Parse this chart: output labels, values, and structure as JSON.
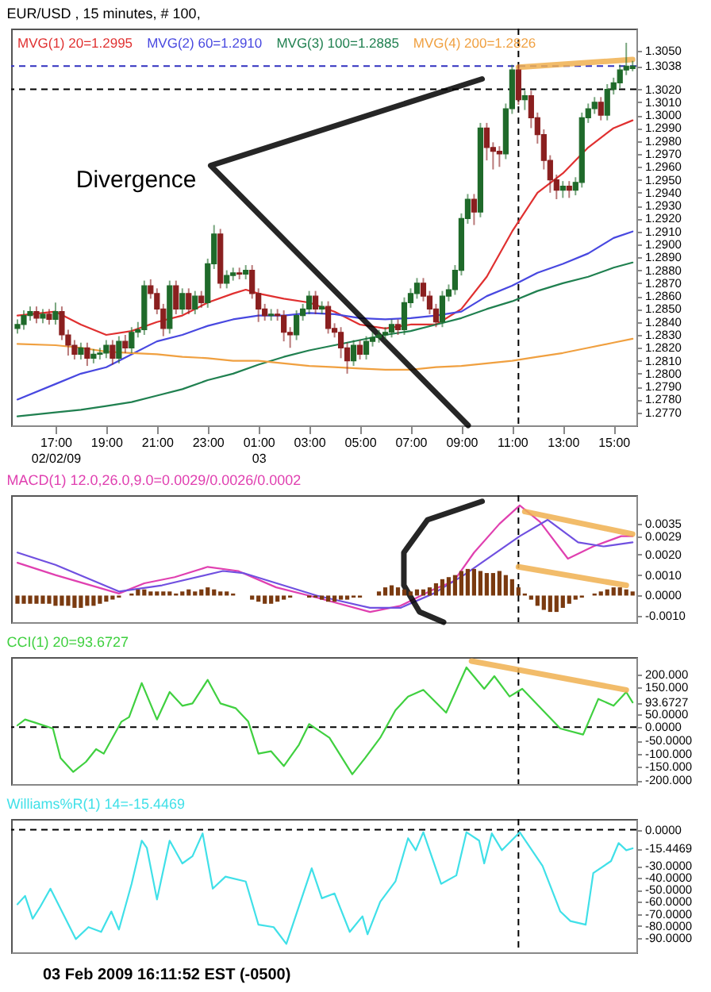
{
  "chart_data": [
    {
      "type": "candlestick",
      "title": "EUR/USD , 15 minutes, # 100,",
      "x": [
        "2009-02-02T15:30",
        "2009-02-02T15:45",
        "2009-02-02T16:00",
        "2009-02-02T16:15",
        "2009-02-02T16:30",
        "2009-02-02T16:45",
        "2009-02-02T17:00",
        "2009-02-02T17:15",
        "2009-02-02T17:30",
        "2009-02-02T17:45",
        "2009-02-02T18:00",
        "2009-02-02T18:15",
        "2009-02-02T18:30",
        "2009-02-02T18:45",
        "2009-02-02T19:00",
        "2009-02-02T19:15",
        "2009-02-02T19:30",
        "2009-02-02T19:45",
        "2009-02-02T20:00",
        "2009-02-02T20:15",
        "2009-02-02T20:30",
        "2009-02-02T20:45",
        "2009-02-02T21:00",
        "2009-02-02T21:15",
        "2009-02-02T21:30",
        "2009-02-02T21:45",
        "2009-02-02T22:00",
        "2009-02-02T22:15",
        "2009-02-02T22:30",
        "2009-02-02T22:45",
        "2009-02-02T23:00",
        "2009-02-02T23:15",
        "2009-02-02T23:30",
        "2009-02-02T23:45",
        "2009-02-03T00:00",
        "2009-02-03T00:15",
        "2009-02-03T00:30",
        "2009-02-03T00:45",
        "2009-02-03T01:00",
        "2009-02-03T01:15",
        "2009-02-03T01:30",
        "2009-02-03T01:45",
        "2009-02-03T02:00",
        "2009-02-03T02:15",
        "2009-02-03T02:30",
        "2009-02-03T02:45",
        "2009-02-03T03:00",
        "2009-02-03T03:15",
        "2009-02-03T03:30",
        "2009-02-03T03:45",
        "2009-02-03T04:00",
        "2009-02-03T04:15",
        "2009-02-03T04:30",
        "2009-02-03T04:45",
        "2009-02-03T05:00",
        "2009-02-03T05:15",
        "2009-02-03T05:30",
        "2009-02-03T05:45",
        "2009-02-03T06:00",
        "2009-02-03T06:15",
        "2009-02-03T06:30",
        "2009-02-03T06:45",
        "2009-02-03T07:00",
        "2009-02-03T07:15",
        "2009-02-03T07:30",
        "2009-02-03T07:45",
        "2009-02-03T08:00",
        "2009-02-03T08:15",
        "2009-02-03T08:30",
        "2009-02-03T08:45",
        "2009-02-03T09:00",
        "2009-02-03T09:15",
        "2009-02-03T09:30",
        "2009-02-03T09:45",
        "2009-02-03T10:00",
        "2009-02-03T10:15",
        "2009-02-03T10:30",
        "2009-02-03T10:45",
        "2009-02-03T11:00",
        "2009-02-03T11:15",
        "2009-02-03T11:30",
        "2009-02-03T11:45",
        "2009-02-03T12:00",
        "2009-02-03T12:15",
        "2009-02-03T12:30",
        "2009-02-03T12:45",
        "2009-02-03T13:00",
        "2009-02-03T13:15",
        "2009-02-03T13:30",
        "2009-02-03T13:45",
        "2009-02-03T14:00",
        "2009-02-03T14:15",
        "2009-02-03T14:30",
        "2009-02-03T14:45",
        "2009-02-03T15:00",
        "2009-02-03T15:15",
        "2009-02-03T15:30",
        "2009-02-03T15:45"
      ],
      "ohlc": [
        [
          1.2835,
          1.2842,
          1.2831,
          1.2838
        ],
        [
          1.2838,
          1.2849,
          1.2834,
          1.2845
        ],
        [
          1.2845,
          1.2852,
          1.2841,
          1.2848
        ],
        [
          1.2848,
          1.2852,
          1.2839,
          1.2843
        ],
        [
          1.2843,
          1.285,
          1.2839,
          1.2846
        ],
        [
          1.2846,
          1.285,
          1.2838,
          1.2842
        ],
        [
          1.2842,
          1.2855,
          1.2838,
          1.2848
        ],
        [
          1.2848,
          1.2852,
          1.2826,
          1.283
        ],
        [
          1.283,
          1.2834,
          1.2814,
          1.2822
        ],
        [
          1.2822,
          1.2826,
          1.2811,
          1.2815
        ],
        [
          1.2815,
          1.2824,
          1.2811,
          1.282
        ],
        [
          1.282,
          1.2824,
          1.2806,
          1.2812
        ],
        [
          1.2812,
          1.2819,
          1.2808,
          1.2815
        ],
        [
          1.2815,
          1.282,
          1.2811,
          1.2816
        ],
        [
          1.2816,
          1.2826,
          1.2812,
          1.2822
        ],
        [
          1.2822,
          1.2826,
          1.2807,
          1.2812
        ],
        [
          1.2812,
          1.2829,
          1.2808,
          1.2825
        ],
        [
          1.2825,
          1.283,
          1.2816,
          1.282
        ],
        [
          1.282,
          1.2836,
          1.2816,
          1.2832
        ],
        [
          1.2832,
          1.284,
          1.2828,
          1.2834
        ],
        [
          1.2834,
          1.2872,
          1.283,
          1.2868
        ],
        [
          1.2868,
          1.2873,
          1.2858,
          1.2862
        ],
        [
          1.2862,
          1.2866,
          1.2846,
          1.285
        ],
        [
          1.285,
          1.2854,
          1.2829,
          1.2835
        ],
        [
          1.2835,
          1.2872,
          1.2831,
          1.2868
        ],
        [
          1.2868,
          1.2872,
          1.2846,
          1.285
        ],
        [
          1.285,
          1.2866,
          1.2846,
          1.2862
        ],
        [
          1.2862,
          1.2866,
          1.2846,
          1.285
        ],
        [
          1.285,
          1.2864,
          1.2846,
          1.286
        ],
        [
          1.286,
          1.2864,
          1.2851,
          1.2855
        ],
        [
          1.2855,
          1.2889,
          1.2851,
          1.2885
        ],
        [
          1.2885,
          1.2915,
          1.2881,
          1.2908
        ],
        [
          1.2908,
          1.2912,
          1.2866,
          1.287
        ],
        [
          1.287,
          1.288,
          1.2866,
          1.2876
        ],
        [
          1.2876,
          1.2882,
          1.2872,
          1.2878
        ],
        [
          1.2878,
          1.2882,
          1.2873,
          1.2877
        ],
        [
          1.2877,
          1.2884,
          1.2873,
          1.288
        ],
        [
          1.288,
          1.2884,
          1.2858,
          1.2862
        ],
        [
          1.2862,
          1.2866,
          1.284,
          1.285
        ],
        [
          1.285,
          1.2854,
          1.2841,
          1.2845
        ],
        [
          1.2845,
          1.285,
          1.2841,
          1.2846
        ],
        [
          1.2846,
          1.285,
          1.2841,
          1.2845
        ],
        [
          1.2845,
          1.2849,
          1.2825,
          1.2832
        ],
        [
          1.2832,
          1.2836,
          1.282,
          1.283
        ],
        [
          1.283,
          1.2849,
          1.2826,
          1.2845
        ],
        [
          1.2845,
          1.2854,
          1.2841,
          1.285
        ],
        [
          1.285,
          1.2864,
          1.2846,
          1.286
        ],
        [
          1.286,
          1.2864,
          1.2846,
          1.285
        ],
        [
          1.285,
          1.2856,
          1.2846,
          1.2852
        ],
        [
          1.2852,
          1.2856,
          1.2831,
          1.2835
        ],
        [
          1.2835,
          1.2839,
          1.2828,
          1.2832
        ],
        [
          1.2832,
          1.2836,
          1.2812,
          1.282
        ],
        [
          1.282,
          1.2824,
          1.28,
          1.281
        ],
        [
          1.281,
          1.2826,
          1.2806,
          1.2822
        ],
        [
          1.2822,
          1.2826,
          1.2811,
          1.2815
        ],
        [
          1.2815,
          1.2829,
          1.2811,
          1.2825
        ],
        [
          1.2825,
          1.2832,
          1.2821,
          1.2828
        ],
        [
          1.2828,
          1.2834,
          1.2824,
          1.283
        ],
        [
          1.283,
          1.2836,
          1.2826,
          1.2832
        ],
        [
          1.2832,
          1.2842,
          1.2828,
          1.2838
        ],
        [
          1.2838,
          1.2842,
          1.283,
          1.2834
        ],
        [
          1.2834,
          1.2859,
          1.283,
          1.2855
        ],
        [
          1.2855,
          1.2866,
          1.2851,
          1.2862
        ],
        [
          1.2862,
          1.2874,
          1.2858,
          1.287
        ],
        [
          1.287,
          1.2874,
          1.2856,
          1.286
        ],
        [
          1.286,
          1.2864,
          1.2846,
          1.285
        ],
        [
          1.285,
          1.2854,
          1.2836,
          1.284
        ],
        [
          1.284,
          1.2864,
          1.2836,
          1.286
        ],
        [
          1.286,
          1.2869,
          1.2856,
          1.2865
        ],
        [
          1.2865,
          1.2884,
          1.2861,
          1.288
        ],
        [
          1.288,
          1.2924,
          1.2876,
          1.292
        ],
        [
          1.292,
          1.2939,
          1.2916,
          1.2935
        ],
        [
          1.2935,
          1.2939,
          1.2915,
          1.2925
        ],
        [
          1.2925,
          1.2994,
          1.2921,
          1.299
        ],
        [
          1.299,
          1.2994,
          1.2965,
          1.2975
        ],
        [
          1.2975,
          1.2979,
          1.2958,
          1.2972
        ],
        [
          1.2972,
          1.2976,
          1.296,
          1.297
        ],
        [
          1.297,
          1.3009,
          1.2966,
          1.3005
        ],
        [
          1.3005,
          1.3039,
          1.3001,
          1.3035
        ],
        [
          1.3035,
          1.3039,
          1.3008,
          1.3012
        ],
        [
          1.3012,
          1.3019,
          1.3004,
          1.3015
        ],
        [
          1.3015,
          1.3019,
          1.299,
          1.2998
        ],
        [
          1.2998,
          1.3002,
          1.2978,
          1.2985
        ],
        [
          1.2985,
          1.2989,
          1.2958,
          1.2965
        ],
        [
          1.2965,
          1.2969,
          1.294,
          1.295
        ],
        [
          1.295,
          1.2954,
          1.2935,
          1.2942
        ],
        [
          1.2942,
          1.2949,
          1.2936,
          1.2945
        ],
        [
          1.2945,
          1.2949,
          1.2936,
          1.2942
        ],
        [
          1.2942,
          1.2952,
          1.2938,
          1.2948
        ],
        [
          1.2948,
          1.3002,
          1.2944,
          1.2998
        ],
        [
          1.2998,
          1.3009,
          1.2994,
          1.3005
        ],
        [
          1.3005,
          1.3014,
          1.3001,
          1.301
        ],
        [
          1.301,
          1.3014,
          1.2996,
          1.3
        ],
        [
          1.3,
          1.3024,
          1.2996,
          1.302
        ],
        [
          1.302,
          1.3029,
          1.3016,
          1.3025
        ],
        [
          1.3025,
          1.3039,
          1.3021,
          1.3035
        ],
        [
          1.3035,
          1.3056,
          1.3031,
          1.3038
        ],
        [
          1.3036,
          1.3042,
          1.3034,
          1.3038
        ]
      ],
      "series": [
        {
          "type": "line",
          "name": "MVG(1) 20=1.2995",
          "color": "#e03030",
          "x": [
            "2009-02-02T15:30",
            "2009-02-02T17:00",
            "2009-02-02T18:00",
            "2009-02-02T19:00",
            "2009-02-02T20:00",
            "2009-02-02T21:00",
            "2009-02-02T22:00",
            "2009-02-02T23:00",
            "2009-02-03T00:00",
            "2009-02-03T00:30",
            "2009-02-03T01:00",
            "2009-02-03T02:00",
            "2009-02-03T03:00",
            "2009-02-03T04:00",
            "2009-02-03T05:00",
            "2009-02-03T06:00",
            "2009-02-03T07:00",
            "2009-02-03T08:00",
            "2009-02-03T09:00",
            "2009-02-03T10:00",
            "2009-02-03T11:00",
            "2009-02-03T12:00",
            "2009-02-03T13:00",
            "2009-02-03T14:00",
            "2009-02-03T15:00",
            "2009-02-03T15:45"
          ],
          "values": [
            1.2845,
            1.2848,
            1.2838,
            1.283,
            1.2833,
            1.284,
            1.2845,
            1.2855,
            1.2862,
            1.2865,
            1.2862,
            1.2858,
            1.2855,
            1.2848,
            1.2838,
            1.2835,
            1.2838,
            1.2838,
            1.285,
            1.2875,
            1.291,
            1.294,
            1.2955,
            1.2975,
            1.299,
            1.2996
          ]
        },
        {
          "type": "line",
          "name": "MVG(2) 60=1.2910",
          "color": "#4848e0",
          "x": [
            "2009-02-02T15:30",
            "2009-02-02T17:00",
            "2009-02-02T18:00",
            "2009-02-02T19:00",
            "2009-02-02T20:00",
            "2009-02-02T21:00",
            "2009-02-02T22:00",
            "2009-02-02T23:00",
            "2009-02-03T00:00",
            "2009-02-03T01:00",
            "2009-02-03T02:00",
            "2009-02-03T03:00",
            "2009-02-03T04:00",
            "2009-02-03T05:00",
            "2009-02-03T06:00",
            "2009-02-03T07:00",
            "2009-02-03T08:00",
            "2009-02-03T09:00",
            "2009-02-03T10:00",
            "2009-02-03T11:00",
            "2009-02-03T12:00",
            "2009-02-03T13:00",
            "2009-02-03T14:00",
            "2009-02-03T15:00",
            "2009-02-03T15:45"
          ],
          "values": [
            1.278,
            1.2792,
            1.28,
            1.2805,
            1.2815,
            1.2825,
            1.283,
            1.2837,
            1.2842,
            1.2845,
            1.2845,
            1.2847,
            1.2846,
            1.2843,
            1.2842,
            1.2843,
            1.2845,
            1.2848,
            1.286,
            1.2868,
            1.2878,
            1.2885,
            1.2893,
            1.2905,
            1.291
          ]
        },
        {
          "type": "line",
          "name": "MVG(3) 100=1.2885",
          "color": "#208050",
          "x": [
            "2009-02-02T15:30",
            "2009-02-02T17:00",
            "2009-02-02T18:00",
            "2009-02-02T19:00",
            "2009-02-02T20:00",
            "2009-02-02T21:00",
            "2009-02-02T22:00",
            "2009-02-02T23:00",
            "2009-02-03T00:00",
            "2009-02-03T01:00",
            "2009-02-03T02:00",
            "2009-02-03T03:00",
            "2009-02-03T04:00",
            "2009-02-03T05:00",
            "2009-02-03T06:00",
            "2009-02-03T07:00",
            "2009-02-03T08:00",
            "2009-02-03T09:00",
            "2009-02-03T10:00",
            "2009-02-03T11:00",
            "2009-02-03T12:00",
            "2009-02-03T13:00",
            "2009-02-03T14:00",
            "2009-02-03T15:00",
            "2009-02-03T15:45"
          ],
          "values": [
            1.2767,
            1.277,
            1.2772,
            1.2775,
            1.2778,
            1.2783,
            1.2788,
            1.2795,
            1.28,
            1.2807,
            1.2813,
            1.2818,
            1.2822,
            1.2826,
            1.283,
            1.2833,
            1.2838,
            1.2843,
            1.285,
            1.2856,
            1.2864,
            1.287,
            1.2875,
            1.2882,
            1.2886
          ]
        },
        {
          "type": "line",
          "name": "MVG(4) 200=1.2826",
          "color": "#f0a040",
          "x": [
            "2009-02-02T15:30",
            "2009-02-02T17:00",
            "2009-02-02T18:00",
            "2009-02-02T19:00",
            "2009-02-02T20:00",
            "2009-02-02T21:00",
            "2009-02-02T22:00",
            "2009-02-02T23:00",
            "2009-02-03T00:00",
            "2009-02-03T01:00",
            "2009-02-03T02:00",
            "2009-02-03T03:00",
            "2009-02-03T04:00",
            "2009-02-03T05:00",
            "2009-02-03T06:00",
            "2009-02-03T07:00",
            "2009-02-03T08:00",
            "2009-02-03T09:00",
            "2009-02-03T10:00",
            "2009-02-03T11:00",
            "2009-02-03T12:00",
            "2009-02-03T13:00",
            "2009-02-03T14:00",
            "2009-02-03T15:00",
            "2009-02-03T15:45"
          ],
          "values": [
            1.2823,
            1.2822,
            1.282,
            1.2817,
            1.2816,
            1.2815,
            1.2813,
            1.2812,
            1.281,
            1.281,
            1.2808,
            1.2806,
            1.2805,
            1.2804,
            1.2803,
            1.2803,
            1.2805,
            1.2806,
            1.2808,
            1.281,
            1.2813,
            1.2816,
            1.282,
            1.2824,
            1.2827
          ]
        },
        {
          "type": "line",
          "color": "#f0b050",
          "x": [
            "2009-02-03T11:15",
            "2009-02-03T15:45"
          ],
          "values": [
            1.3037,
            1.3043
          ]
        },
        {
          "type": "line",
          "color": "#000000",
          "x": [
            "2009-02-03T09:49",
            "2009-02-02T23:07",
            "2009-02-03T09:16"
          ],
          "values": [
            1.3028,
            1.2961,
            1.276
          ]
        }
      ],
      "annotations": [
        "Divergence"
      ],
      "ref_lines": [
        {
          "axis": "y",
          "value": 1.3038,
          "color": "#3030c0",
          "line_style": "dashed"
        },
        {
          "axis": "y",
          "value": 1.302,
          "color": "#000000",
          "line_style": "dashed"
        },
        {
          "axis": "x",
          "value": "2009-02-03T11:15",
          "color": "#000000",
          "line_style": "dashed"
        }
      ],
      "xlim": [
        "2009-02-02T15:15",
        "2009-02-03T15:54"
      ],
      "xticks": [
        {
          "value": "2009-02-02T17:00",
          "label": "17:00\n02/02/09"
        },
        {
          "value": "2009-02-02T19:00",
          "label": "19:00"
        },
        {
          "value": "2009-02-02T21:00",
          "label": "21:00"
        },
        {
          "value": "2009-02-02T23:00",
          "label": "23:00"
        },
        {
          "value": "2009-02-03T01:00",
          "label": "01:00\n03"
        },
        {
          "value": "2009-02-03T03:00",
          "label": "03:00"
        },
        {
          "value": "2009-02-03T05:00",
          "label": "05:00"
        },
        {
          "value": "2009-02-03T07:00",
          "label": "07:00"
        },
        {
          "value": "2009-02-03T09:00",
          "label": "09:00"
        },
        {
          "value": "2009-02-03T11:00",
          "label": "11:00"
        },
        {
          "value": "2009-02-03T13:00",
          "label": "13:00"
        },
        {
          "value": "2009-02-03T15:00",
          "label": "15:00"
        }
      ],
      "ylim": [
        1.276,
        1.3067
      ],
      "yticks": [
        {
          "value": 1.277,
          "label": "1.2770"
        },
        {
          "value": 1.278,
          "label": "1.2780"
        },
        {
          "value": 1.279,
          "label": "1.2790"
        },
        {
          "value": 1.28,
          "label": "1.2800"
        },
        {
          "value": 1.281,
          "label": "1.2810"
        },
        {
          "value": 1.282,
          "label": "1.2820"
        },
        {
          "value": 1.283,
          "label": "1.2830"
        },
        {
          "value": 1.284,
          "label": "1.2840"
        },
        {
          "value": 1.285,
          "label": "1.2850"
        },
        {
          "value": 1.286,
          "label": "1.2860"
        },
        {
          "value": 1.287,
          "label": "1.2870"
        },
        {
          "value": 1.288,
          "label": "1.2880"
        },
        {
          "value": 1.289,
          "label": "1.2890"
        },
        {
          "value": 1.29,
          "label": "1.2900"
        },
        {
          "value": 1.291,
          "label": "1.2910"
        },
        {
          "value": 1.292,
          "label": "1.2920"
        },
        {
          "value": 1.293,
          "label": "1.2930"
        },
        {
          "value": 1.294,
          "label": "1.2940"
        },
        {
          "value": 1.295,
          "label": "1.2950"
        },
        {
          "value": 1.296,
          "label": "1.2960"
        },
        {
          "value": 1.297,
          "label": "1.2970"
        },
        {
          "value": 1.298,
          "label": "1.2980"
        },
        {
          "value": 1.299,
          "label": "1.2990"
        },
        {
          "value": 1.3,
          "label": "1.3000"
        },
        {
          "value": 1.301,
          "label": "1.3010"
        },
        {
          "value": 1.302,
          "label": "1.3020"
        },
        {
          "value": 1.3038,
          "label": "1.3038"
        },
        {
          "value": 1.305,
          "label": "1.3050"
        }
      ]
    },
    {
      "type": "line",
      "title": "MACD(1) 12.0,26.0,9.0=0.0029/0.0026/0.0002",
      "tick_labels": "y",
      "x": [
        "2009-02-02T15:30",
        "2009-02-02T15:45",
        "2009-02-02T16:00",
        "2009-02-02T16:15",
        "2009-02-02T16:30",
        "2009-02-02T16:45",
        "2009-02-02T17:00",
        "2009-02-02T17:15",
        "2009-02-02T17:30",
        "2009-02-02T17:45",
        "2009-02-02T18:00",
        "2009-02-02T18:15",
        "2009-02-02T18:30",
        "2009-02-02T18:45",
        "2009-02-02T19:00",
        "2009-02-02T19:15",
        "2009-02-02T19:30",
        "2009-02-02T19:45",
        "2009-02-02T20:00",
        "2009-02-02T20:15",
        "2009-02-02T20:30",
        "2009-02-02T20:45",
        "2009-02-02T21:00",
        "2009-02-02T21:15",
        "2009-02-02T21:30",
        "2009-02-02T21:45",
        "2009-02-02T22:00",
        "2009-02-02T22:15",
        "2009-02-02T22:30",
        "2009-02-02T22:45",
        "2009-02-02T23:00",
        "2009-02-02T23:15",
        "2009-02-02T23:30",
        "2009-02-02T23:45",
        "2009-02-03T00:00",
        "2009-02-03T00:15",
        "2009-02-03T00:30",
        "2009-02-03T00:45",
        "2009-02-03T01:00",
        "2009-02-03T01:15",
        "2009-02-03T01:30",
        "2009-02-03T01:45",
        "2009-02-03T02:00",
        "2009-02-03T02:15",
        "2009-02-03T02:30",
        "2009-02-03T02:45",
        "2009-02-03T03:00",
        "2009-02-03T03:15",
        "2009-02-03T03:30",
        "2009-02-03T03:45",
        "2009-02-03T04:00",
        "2009-02-03T04:15",
        "2009-02-03T04:30",
        "2009-02-03T04:45",
        "2009-02-03T05:00",
        "2009-02-03T05:15",
        "2009-02-03T05:30",
        "2009-02-03T05:45",
        "2009-02-03T06:00",
        "2009-02-03T06:15",
        "2009-02-03T06:30",
        "2009-02-03T06:45",
        "2009-02-03T07:00",
        "2009-02-03T07:15",
        "2009-02-03T07:30",
        "2009-02-03T07:45",
        "2009-02-03T08:00",
        "2009-02-03T08:15",
        "2009-02-03T08:30",
        "2009-02-03T08:45",
        "2009-02-03T09:00",
        "2009-02-03T09:15",
        "2009-02-03T09:30",
        "2009-02-03T09:45",
        "2009-02-03T10:00",
        "2009-02-03T10:15",
        "2009-02-03T10:30",
        "2009-02-03T10:45",
        "2009-02-03T11:00",
        "2009-02-03T11:15",
        "2009-02-03T11:30",
        "2009-02-03T11:45",
        "2009-02-03T12:00",
        "2009-02-03T12:15",
        "2009-02-03T12:30",
        "2009-02-03T12:45",
        "2009-02-03T13:00",
        "2009-02-03T13:15",
        "2009-02-03T13:30",
        "2009-02-03T13:45",
        "2009-02-03T14:00",
        "2009-02-03T14:15",
        "2009-02-03T14:30",
        "2009-02-03T14:45",
        "2009-02-03T15:00",
        "2009-02-03T15:15",
        "2009-02-03T15:30",
        "2009-02-03T15:45"
      ],
      "series": [
        {
          "color": "#e040b0",
          "x": [
            "2009-02-02T15:30",
            "2009-02-02T17:00",
            "2009-02-02T19:30",
            "2009-02-02T20:30",
            "2009-02-02T21:42",
            "2009-02-02T23:00",
            "2009-02-03T00:12",
            "2009-02-03T01:42",
            "2009-02-03T03:18",
            "2009-02-03T05:24",
            "2009-02-03T06:36",
            "2009-02-03T07:54",
            "2009-02-03T08:42",
            "2009-02-03T09:30",
            "2009-02-03T10:30",
            "2009-02-03T11:18",
            "2009-02-03T12:06",
            "2009-02-03T13:12",
            "2009-02-03T14:12",
            "2009-02-03T15:18",
            "2009-02-03T15:45"
          ],
          "values": [
            0.0016,
            0.001,
            0.0001,
            0.0006,
            0.0009,
            0.0014,
            0.0012,
            0.0004,
            -0.0001,
            -0.0008,
            -0.0005,
            0.0003,
            0.0007,
            0.0021,
            0.0035,
            0.0044,
            0.0036,
            0.0018,
            0.0024,
            0.0029,
            0.0029
          ]
        },
        {
          "color": "#7050e0",
          "x": [
            "2009-02-02T15:30",
            "2009-02-02T17:00",
            "2009-02-02T19:30",
            "2009-02-02T21:12",
            "2009-02-02T23:36",
            "2009-02-03T00:24",
            "2009-02-03T03:18",
            "2009-02-03T05:24",
            "2009-02-03T06:36",
            "2009-02-03T07:54",
            "2009-02-03T09:06",
            "2009-02-03T11:18",
            "2009-02-03T12:24",
            "2009-02-03T13:36",
            "2009-02-03T14:36",
            "2009-02-03T15:45"
          ],
          "values": [
            0.0021,
            0.0015,
            0.0002,
            0.0005,
            0.0012,
            0.0011,
            0.0,
            -0.0006,
            -0.0006,
            0.0001,
            0.001,
            0.0029,
            0.0037,
            0.0026,
            0.0024,
            0.0026
          ]
        },
        {
          "type": "bar",
          "color": "#7a3a10",
          "values": [
            -0.0004,
            -0.0004,
            -0.0004,
            -0.0004,
            -0.0004,
            -0.0004,
            -0.0005,
            -0.0005,
            -0.0005,
            -0.0006,
            -0.0006,
            -0.0005,
            -0.0005,
            -0.0004,
            -0.0003,
            -0.0002,
            -0.0001,
            0.0,
            0.0001,
            0.0003,
            0.0003,
            0.0002,
            0.0002,
            0.0002,
            0.0002,
            0.0001,
            0.0002,
            0.0003,
            0.0002,
            0.0003,
            0.0004,
            0.0003,
            0.0002,
            0.0002,
            0.0001,
            0.0,
            0.0,
            -0.0002,
            -0.0003,
            -0.0004,
            -0.0004,
            -0.0003,
            -0.0002,
            -0.0001,
            0.0,
            0.0,
            -0.0001,
            -0.0001,
            -0.0002,
            -0.0003,
            -0.0003,
            -0.0002,
            -0.0002,
            -0.0001,
            -0.0001,
            0.0,
            0.0,
            0.0002,
            0.0004,
            0.0005,
            0.0004,
            0.0003,
            0.0002,
            0.0003,
            0.0003,
            0.0004,
            0.0006,
            0.0008,
            0.0009,
            0.001,
            0.0012,
            0.0013,
            0.0013,
            0.0012,
            0.0011,
            0.0011,
            0.0012,
            0.001,
            0.0008,
            0.0004,
            0.0001,
            -0.0002,
            -0.0005,
            -0.0007,
            -0.0008,
            -0.0008,
            -0.0006,
            -0.0004,
            -0.0002,
            -0.0001,
            0.0,
            0.0001,
            0.0002,
            0.0003,
            0.0004,
            0.0004,
            0.0003,
            0.0002
          ]
        },
        {
          "type": "line",
          "color": "#f0b050",
          "x": [
            "2009-02-03T11:30",
            "2009-02-03T15:45"
          ],
          "values": [
            0.0041,
            0.003
          ]
        },
        {
          "type": "line",
          "color": "#f0b050",
          "x": [
            "2009-02-03T11:15",
            "2009-02-03T15:30"
          ],
          "values": [
            0.0014,
            0.0005
          ]
        },
        {
          "type": "line",
          "color": "#000000",
          "x": [
            "2009-02-03T09:49",
            "2009-02-03T07:40",
            "2009-02-03T06:44",
            "2009-02-03T06:44",
            "2009-02-03T07:21",
            "2009-02-03T08:18"
          ],
          "values": [
            0.0046,
            0.0037,
            0.0021,
            0.0005,
            -0.0008,
            -0.0013
          ]
        }
      ],
      "ref_lines": [
        {
          "axis": "x",
          "value": "2009-02-03T11:15",
          "color": "#000000",
          "line_style": "dashed"
        }
      ],
      "xlim": [
        "2009-02-02T15:15",
        "2009-02-03T15:54"
      ],
      "ylim": [
        -0.0013,
        0.0049
      ],
      "yticks": [
        {
          "value": -0.001,
          "label": "-0.0010"
        },
        {
          "value": 0,
          "label": "0.0000"
        },
        {
          "value": 0.001,
          "label": "0.0010"
        },
        {
          "value": 0.002,
          "label": "0.0020"
        },
        {
          "value": 0.0029,
          "label": "0.0029"
        },
        {
          "value": 0.0035,
          "label": "0.0035"
        }
      ]
    },
    {
      "type": "line",
      "title": "CCI(1) 20=93.6727",
      "tick_labels": "y",
      "series": [
        {
          "color": "#40d040",
          "x": [
            "2009-02-02T15:30",
            "2009-02-02T15:48",
            "2009-02-02T16:12",
            "2009-02-02T16:54",
            "2009-02-02T17:12",
            "2009-02-02T17:42",
            "2009-02-02T18:12",
            "2009-02-02T18:36",
            "2009-02-02T18:54",
            "2009-02-02T19:36",
            "2009-02-02T19:54",
            "2009-02-02T20:24",
            "2009-02-02T21:00",
            "2009-02-02T21:30",
            "2009-02-02T22:00",
            "2009-02-02T22:24",
            "2009-02-02T23:00",
            "2009-02-02T23:30",
            "2009-02-03T00:06",
            "2009-02-03T00:36",
            "2009-02-03T01:00",
            "2009-02-03T01:30",
            "2009-02-03T02:00",
            "2009-02-03T02:36",
            "2009-02-03T03:00",
            "2009-02-03T03:48",
            "2009-02-03T04:42",
            "2009-02-03T05:12",
            "2009-02-03T05:48",
            "2009-02-03T06:24",
            "2009-02-03T06:54",
            "2009-02-03T07:30",
            "2009-02-03T08:24",
            "2009-02-03T09:12",
            "2009-02-03T09:54",
            "2009-02-03T10:18",
            "2009-02-03T10:54",
            "2009-02-03T11:24",
            "2009-02-03T12:54",
            "2009-02-03T13:48",
            "2009-02-03T14:24",
            "2009-02-03T15:00",
            "2009-02-03T15:30",
            "2009-02-03T15:45"
          ],
          "values": [
            7,
            29,
            17,
            -5,
            -117,
            -169,
            -131,
            -83,
            -100,
            21,
            38,
            167,
            29,
            133,
            81,
            90,
            179,
            90,
            72,
            21,
            -100,
            -91,
            -147,
            -66,
            12,
            -40,
            -178,
            -117,
            -40,
            64,
            116,
            141,
            55,
            226,
            145,
            193,
            116,
            145,
            -5,
            -28,
            107,
            81,
            133,
            93.6727
          ]
        },
        {
          "type": "line",
          "color": "#f0b050",
          "x": [
            "2009-02-03T09:24",
            "2009-02-03T15:30"
          ],
          "values": [
            250,
            141
          ]
        }
      ],
      "ref_lines": [
        {
          "axis": "y",
          "value": 0,
          "color": "#000000",
          "line_style": "dashed"
        },
        {
          "axis": "x",
          "value": "2009-02-03T11:15",
          "color": "#000000",
          "line_style": "dashed"
        }
      ],
      "xlim": [
        "2009-02-02T15:15",
        "2009-02-03T15:54"
      ],
      "ylim": [
        -215,
        265
      ],
      "yticks": [
        {
          "value": -200,
          "label": "-200.000"
        },
        {
          "value": -150,
          "label": "-150.000"
        },
        {
          "value": -100,
          "label": "-100.000"
        },
        {
          "value": -50,
          "label": "-50.0000"
        },
        {
          "value": 0,
          "label": "0.0000"
        },
        {
          "value": 50,
          "label": "50.0000"
        },
        {
          "value": 93.6727,
          "label": "93.6727"
        },
        {
          "value": 150,
          "label": "150.000"
        },
        {
          "value": 200,
          "label": "200.000"
        }
      ]
    },
    {
      "type": "line",
      "title": "Williams%R(1) 14=-15.4469",
      "tick_labels": "y",
      "series": [
        {
          "color": "#40e0e8",
          "x": [
            "2009-02-02T15:30",
            "2009-02-02T15:48",
            "2009-02-02T16:06",
            "2009-02-02T16:24",
            "2009-02-02T16:48",
            "2009-02-02T17:18",
            "2009-02-02T17:48",
            "2009-02-02T18:18",
            "2009-02-02T18:48",
            "2009-02-02T19:12",
            "2009-02-02T19:30",
            "2009-02-02T20:00",
            "2009-02-02T20:24",
            "2009-02-02T20:36",
            "2009-02-02T21:00",
            "2009-02-02T21:30",
            "2009-02-02T22:00",
            "2009-02-02T22:24",
            "2009-02-02T22:48",
            "2009-02-02T23:12",
            "2009-02-02T23:42",
            "2009-02-03T00:30",
            "2009-02-03T01:00",
            "2009-02-03T01:36",
            "2009-02-03T02:06",
            "2009-02-03T03:06",
            "2009-02-03T03:30",
            "2009-02-03T04:00",
            "2009-02-03T04:36",
            "2009-02-03T05:06",
            "2009-02-03T05:18",
            "2009-02-03T05:48",
            "2009-02-03T06:24",
            "2009-02-03T06:54",
            "2009-02-03T07:12",
            "2009-02-03T07:30",
            "2009-02-03T08:12",
            "2009-02-03T08:48",
            "2009-02-03T09:12",
            "2009-02-03T09:42",
            "2009-02-03T09:54",
            "2009-02-03T10:12",
            "2009-02-03T10:36",
            "2009-02-03T11:18",
            "2009-02-03T12:12",
            "2009-02-03T12:54",
            "2009-02-03T13:18",
            "2009-02-03T13:54",
            "2009-02-03T14:12",
            "2009-02-03T14:54",
            "2009-02-03T15:12",
            "2009-02-03T15:30",
            "2009-02-03T15:45"
          ],
          "values": [
            -62,
            -55,
            -74,
            -64,
            -49,
            -70,
            -91,
            -81,
            -85,
            -68,
            -83,
            -45,
            -9,
            -15,
            -58,
            -9,
            -28,
            -22,
            -3,
            -49,
            -39,
            -43,
            -79,
            -81,
            -95,
            -32,
            -57,
            -53,
            -85,
            -72,
            -87,
            -60,
            -43,
            -7,
            -17,
            -2,
            -45,
            -38,
            -2,
            -9,
            -28,
            -3,
            -17,
            -2,
            -30,
            -68,
            -76,
            -79,
            -36,
            -26,
            -11,
            -17,
            -15.4469
          ]
        }
      ],
      "ref_lines": [
        {
          "axis": "y",
          "value": 0,
          "color": "#000000",
          "line_style": "dashed"
        },
        {
          "axis": "x",
          "value": "2009-02-03T11:15",
          "color": "#000000",
          "line_style": "dashed"
        }
      ],
      "annotations": [
        "03 Feb 2009 16:11:52  EST (-0500)"
      ],
      "xlim": [
        "2009-02-02T15:15",
        "2009-02-03T15:54"
      ],
      "ylim": [
        -102,
        9
      ],
      "yticks": [
        {
          "value": -90,
          "label": "-90.0000"
        },
        {
          "value": -80,
          "label": "-80.0000"
        },
        {
          "value": -70,
          "label": "-70.0000"
        },
        {
          "value": -60,
          "label": "-60.0000"
        },
        {
          "value": -50,
          "label": "-50.0000"
        },
        {
          "value": -40,
          "label": "-40.0000"
        },
        {
          "value": -30,
          "label": "-30.0000"
        },
        {
          "value": -15.4469,
          "label": "-15.4469"
        },
        {
          "value": 0,
          "label": "0.0000"
        }
      ]
    }
  ]
}
